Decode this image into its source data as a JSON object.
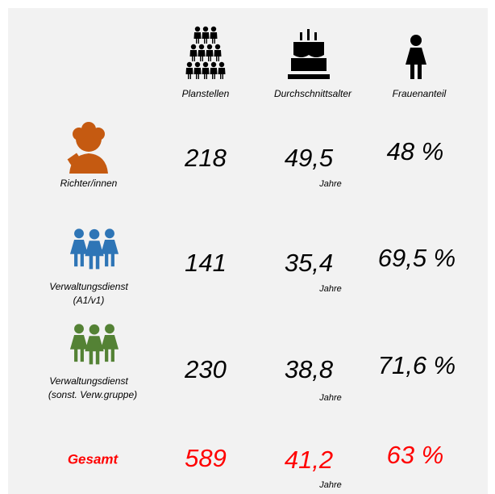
{
  "header": {
    "columns": [
      "Planstellen",
      "Durchschnittsalter",
      "Frauenanteil"
    ]
  },
  "rows": [
    {
      "label": [
        "Richter/innen"
      ],
      "planstellen": "218",
      "alter": "49,5",
      "unit": "Jahre",
      "frauen": "48 %"
    },
    {
      "label": [
        "Verwaltungsdienst",
        "(A1/v1)"
      ],
      "planstellen": "141",
      "alter": "35,4",
      "unit": "Jahre",
      "frauen": "69,5 %"
    },
    {
      "label": [
        "Verwaltungsdienst",
        "(sonst. Verw.gruppe)"
      ],
      "planstellen": "230",
      "alter": "38,8",
      "unit": "Jahre",
      "frauen": "71,6 %"
    },
    {
      "label": [
        "Gesamt"
      ],
      "planstellen": "589",
      "alter": "41,2",
      "unit": "Jahre",
      "frauen": "63 %"
    }
  ]
}
